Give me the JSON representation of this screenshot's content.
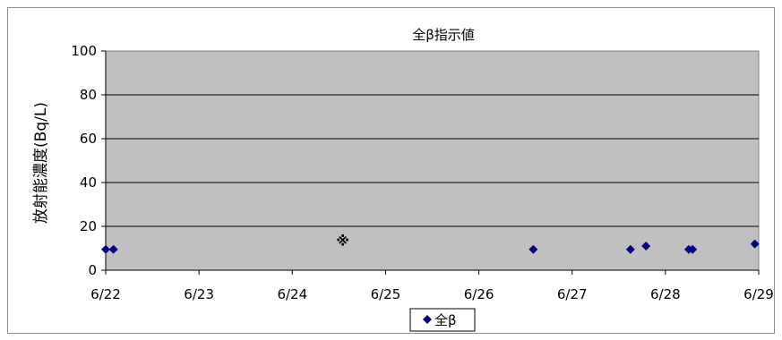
{
  "chart_data": {
    "type": "scatter",
    "title": "全β指示値",
    "xlabel": "",
    "ylabel": "放射能濃度(Bq/L)",
    "ylim": [
      0,
      100
    ],
    "yticks": [
      0,
      20,
      40,
      60,
      80,
      100
    ],
    "xlim": [
      "6/22",
      "6/29"
    ],
    "xticks": [
      "6/22",
      "6/23",
      "6/24",
      "6/25",
      "6/26",
      "6/27",
      "6/28",
      "6/29"
    ],
    "grid": true,
    "plot_background": "#c0c0c0",
    "series": [
      {
        "name": "全β",
        "color": "#000080",
        "marker": "diamond",
        "points": [
          {
            "x": "6/22 00:00",
            "y": 9.5
          },
          {
            "x": "6/22 02:00",
            "y": 9.5
          },
          {
            "x": "6/26 14:00",
            "y": 9.5
          },
          {
            "x": "6/27 15:00",
            "y": 9.5
          },
          {
            "x": "6/27 19:00",
            "y": 11
          },
          {
            "x": "6/28 06:00",
            "y": 9.5
          },
          {
            "x": "6/28 07:00",
            "y": 9.5
          },
          {
            "x": "6/28 23:00",
            "y": 12
          }
        ]
      }
    ],
    "annotations": [
      {
        "text": "※",
        "x": "6/24 13:00",
        "y": 14
      }
    ],
    "legend": {
      "position": "bottom",
      "entries": [
        "全β"
      ]
    }
  }
}
